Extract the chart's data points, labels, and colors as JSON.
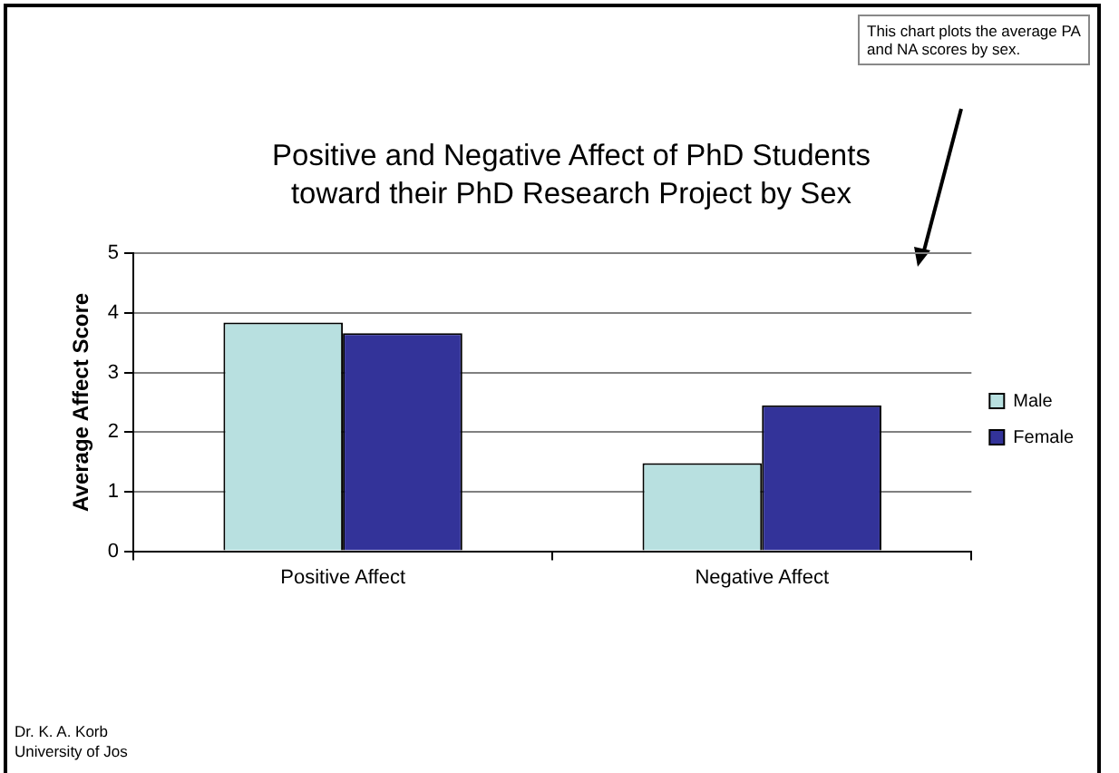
{
  "chart_data": {
    "type": "bar",
    "title": "Positive and Negative Affect of PhD Students toward their PhD Research Project by Sex",
    "ylabel": "Average Affect Score",
    "categories": [
      "Positive Affect",
      "Negative Affect"
    ],
    "series": [
      {
        "name": "Male",
        "color": "#b8e0e0",
        "values": [
          3.84,
          1.48
        ]
      },
      {
        "name": "Female",
        "color": "#333399",
        "values": [
          3.66,
          2.45
        ]
      }
    ],
    "ylim": [
      0,
      5
    ],
    "yticks": [
      0,
      1,
      2,
      3,
      4,
      5
    ],
    "grid": "y",
    "legend": "right",
    "annotations": [
      "This chart plots the average PA and NA scores by sex.",
      "Dr. K. A. Korb",
      "University of Jos"
    ]
  }
}
